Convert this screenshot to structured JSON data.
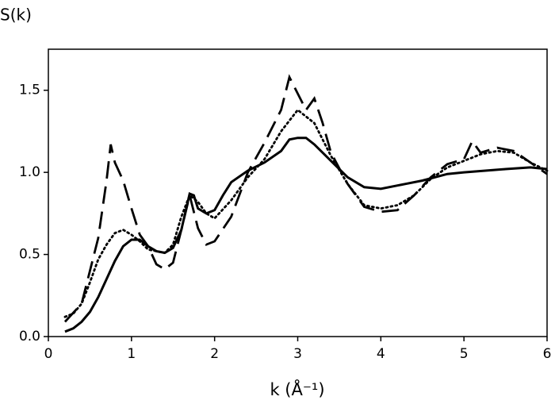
{
  "chart_data": {
    "type": "line",
    "y_label": "S(k)",
    "x_label": "k (Å⁻¹)",
    "xlim": [
      0,
      6
    ],
    "xticks": [
      0,
      1,
      2,
      3,
      4,
      5,
      6
    ],
    "ylim": [
      0,
      1.75
    ],
    "yticks": [
      {
        "value": 0,
        "label": "0.0"
      },
      {
        "value": 0.5,
        "label": "0.5"
      },
      {
        "value": 1,
        "label": "1.0"
      },
      {
        "value": 1.5,
        "label": "1.5"
      }
    ],
    "grid": false,
    "series": [
      {
        "color": "#000000",
        "style": "solid",
        "x": [
          0.2,
          0.3,
          0.4,
          0.5,
          0.6,
          0.7,
          0.8,
          0.9,
          1.0,
          1.1,
          1.2,
          1.3,
          1.4,
          1.5,
          1.6,
          1.7,
          1.75,
          1.8,
          1.9,
          2.0,
          2.1,
          2.2,
          2.4,
          2.6,
          2.8,
          2.9,
          3.0,
          3.1,
          3.2,
          3.4,
          3.6,
          3.8,
          4.0,
          4.2,
          4.5,
          4.8,
          5.0,
          5.5,
          5.8,
          6.0
        ],
        "values": [
          0.03,
          0.05,
          0.09,
          0.15,
          0.24,
          0.35,
          0.46,
          0.55,
          0.59,
          0.59,
          0.55,
          0.52,
          0.51,
          0.54,
          0.65,
          0.87,
          0.86,
          0.78,
          0.75,
          0.77,
          0.86,
          0.94,
          1.01,
          1.06,
          1.13,
          1.2,
          1.21,
          1.21,
          1.17,
          1.07,
          0.97,
          0.91,
          0.9,
          0.92,
          0.95,
          0.99,
          1.0,
          1.02,
          1.03,
          1.02
        ]
      },
      {
        "color": "#000000",
        "style": "dotted",
        "x": [
          0.2,
          0.3,
          0.4,
          0.5,
          0.6,
          0.7,
          0.8,
          0.9,
          1.0,
          1.1,
          1.2,
          1.3,
          1.4,
          1.5,
          1.6,
          1.7,
          1.8,
          1.9,
          2.0,
          2.2,
          2.4,
          2.6,
          2.8,
          3.0,
          3.2,
          3.4,
          3.6,
          3.8,
          4.0,
          4.2,
          4.4,
          4.6,
          4.8,
          5.0,
          5.2,
          5.4,
          5.6,
          5.8,
          6.0
        ],
        "values": [
          0.12,
          0.14,
          0.2,
          0.33,
          0.47,
          0.56,
          0.63,
          0.65,
          0.62,
          0.58,
          0.53,
          0.52,
          0.51,
          0.56,
          0.73,
          0.86,
          0.82,
          0.75,
          0.72,
          0.83,
          0.97,
          1.08,
          1.25,
          1.38,
          1.3,
          1.1,
          0.93,
          0.8,
          0.78,
          0.8,
          0.86,
          0.96,
          1.03,
          1.07,
          1.11,
          1.13,
          1.12,
          1.06,
          1.01
        ]
      },
      {
        "color": "#000000",
        "style": "dashed",
        "x": [
          0.2,
          0.4,
          0.5,
          0.6,
          0.7,
          0.75,
          0.8,
          0.9,
          1.0,
          1.1,
          1.2,
          1.3,
          1.4,
          1.5,
          1.6,
          1.7,
          1.8,
          1.9,
          2.0,
          2.2,
          2.4,
          2.6,
          2.8,
          2.9,
          3.0,
          3.1,
          3.2,
          3.3,
          3.4,
          3.6,
          3.8,
          4.0,
          4.2,
          4.4,
          4.6,
          4.8,
          5.0,
          5.1,
          5.2,
          5.4,
          5.6,
          5.8,
          6.0
        ],
        "values": [
          0.09,
          0.2,
          0.4,
          0.6,
          0.95,
          1.17,
          1.06,
          0.95,
          0.78,
          0.62,
          0.55,
          0.44,
          0.41,
          0.45,
          0.65,
          0.86,
          0.66,
          0.56,
          0.58,
          0.73,
          1.0,
          1.18,
          1.38,
          1.58,
          1.48,
          1.38,
          1.45,
          1.3,
          1.12,
          0.93,
          0.79,
          0.76,
          0.77,
          0.86,
          0.97,
          1.05,
          1.08,
          1.19,
          1.12,
          1.15,
          1.13,
          1.06,
          0.99
        ]
      }
    ]
  }
}
